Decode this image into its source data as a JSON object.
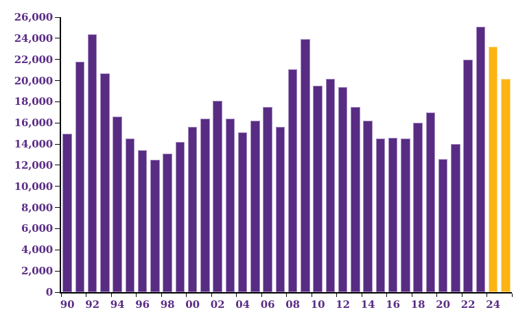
{
  "chart_data": {
    "type": "bar",
    "title": "",
    "legend": "none",
    "grid": false,
    "background": "#ffffff",
    "categories": [
      "1990",
      "1991",
      "1992",
      "1993",
      "1994",
      "1995",
      "1996",
      "1997",
      "1998",
      "1999",
      "2000",
      "2001",
      "2002",
      "2003",
      "2004",
      "2005",
      "2006",
      "2007",
      "2008",
      "2009",
      "2010",
      "2011",
      "2012",
      "2013",
      "2014",
      "2015",
      "2016",
      "2017",
      "2018",
      "2019",
      "2020",
      "2021",
      "2022",
      "2023",
      "2024",
      "2025"
    ],
    "values": [
      15000,
      21800,
      24400,
      20700,
      16600,
      14500,
      13400,
      12500,
      13100,
      14200,
      15600,
      16400,
      18100,
      16400,
      15100,
      16200,
      17500,
      15600,
      21100,
      23900,
      19500,
      20200,
      19400,
      17500,
      16200,
      14500,
      14600,
      14500,
      16000,
      17000,
      12600,
      14000,
      22000,
      25100,
      23200,
      20200
    ],
    "highlighted_categories": [
      "2024",
      "2025"
    ],
    "x_tick_labels": [
      "90",
      "92",
      "94",
      "96",
      "98",
      "00",
      "02",
      "04",
      "06",
      "08",
      "10",
      "12",
      "14",
      "16",
      "18",
      "20",
      "22",
      "24"
    ],
    "y_tick_labels": [
      "0",
      "2,000",
      "4,000",
      "6,000",
      "8,000",
      "10,000",
      "12,000",
      "14,000",
      "16,000",
      "18,000",
      "20,000",
      "22,000",
      "24,000",
      "26,000"
    ],
    "ylim": [
      0,
      26000
    ],
    "ytick_step": 2000,
    "colors": {
      "bar": "#582c83",
      "bar_border": "#a58cc2",
      "highlight": "#fcb414",
      "highlight_border": "#fdda8c",
      "axis": "#000000",
      "label": "#5b2d86"
    }
  }
}
